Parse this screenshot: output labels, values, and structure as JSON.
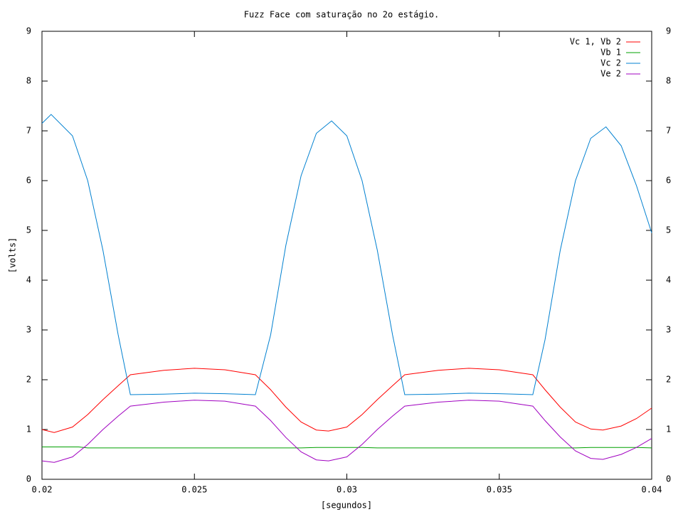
{
  "chart_data": {
    "type": "line",
    "title": "Fuzz Face com saturação no 2o estágio.",
    "xlabel": "[segundos]",
    "ylabel": "[volts]",
    "xlim": [
      0.02,
      0.04
    ],
    "xticks": [
      0.02,
      0.025,
      0.03,
      0.035,
      0.04
    ],
    "ylim": [
      0,
      9
    ],
    "yticks": [
      0,
      1,
      2,
      3,
      4,
      5,
      6,
      7,
      8,
      9
    ],
    "y2lim": [
      0,
      9
    ],
    "y2ticks": [
      0,
      1,
      2,
      3,
      4,
      5,
      6,
      7,
      8,
      9
    ],
    "grid": false,
    "legend": "top-right",
    "series": [
      {
        "name": "Vc 1, Vb 2",
        "color": "#ff0000",
        "x": [
          0.02,
          0.0204,
          0.021,
          0.0215,
          0.022,
          0.0225,
          0.0229,
          0.024,
          0.025,
          0.026,
          0.027,
          0.0275,
          0.028,
          0.0285,
          0.029,
          0.0294,
          0.03,
          0.0305,
          0.031,
          0.0315,
          0.0319,
          0.033,
          0.034,
          0.035,
          0.0361,
          0.0365,
          0.037,
          0.0375,
          0.038,
          0.0384,
          0.039,
          0.0395,
          0.04
        ],
        "values": [
          1.0,
          0.94,
          1.05,
          1.3,
          1.6,
          1.88,
          2.1,
          2.19,
          2.23,
          2.2,
          2.1,
          1.8,
          1.45,
          1.15,
          0.99,
          0.97,
          1.05,
          1.3,
          1.6,
          1.88,
          2.1,
          2.19,
          2.23,
          2.2,
          2.1,
          1.8,
          1.45,
          1.15,
          1.01,
          0.99,
          1.07,
          1.22,
          1.43
        ]
      },
      {
        "name": "Vb 1",
        "color": "#00a000",
        "x": [
          0.02,
          0.0212,
          0.0215,
          0.0285,
          0.029,
          0.0305,
          0.031,
          0.0375,
          0.038,
          0.0395,
          0.04
        ],
        "values": [
          0.65,
          0.65,
          0.63,
          0.63,
          0.64,
          0.64,
          0.63,
          0.63,
          0.64,
          0.64,
          0.63
        ]
      },
      {
        "name": "Vc 2",
        "color": "#0080d0",
        "x": [
          0.02,
          0.0203,
          0.021,
          0.0215,
          0.022,
          0.0225,
          0.0229,
          0.024,
          0.025,
          0.026,
          0.027,
          0.0275,
          0.028,
          0.0285,
          0.029,
          0.0295,
          0.03,
          0.0305,
          0.031,
          0.0315,
          0.0319,
          0.033,
          0.034,
          0.035,
          0.0361,
          0.0365,
          0.037,
          0.0375,
          0.038,
          0.0385,
          0.039,
          0.0395,
          0.04
        ],
        "values": [
          7.15,
          7.33,
          6.9,
          6.0,
          4.6,
          2.9,
          1.7,
          1.71,
          1.73,
          1.72,
          1.7,
          2.9,
          4.7,
          6.1,
          6.95,
          7.2,
          6.9,
          6.0,
          4.6,
          2.9,
          1.7,
          1.71,
          1.73,
          1.72,
          1.7,
          2.8,
          4.6,
          6.0,
          6.85,
          7.08,
          6.7,
          5.9,
          4.95
        ]
      },
      {
        "name": "Ve 2",
        "color": "#a000c0",
        "x": [
          0.02,
          0.0204,
          0.021,
          0.0215,
          0.022,
          0.0225,
          0.0229,
          0.024,
          0.025,
          0.026,
          0.027,
          0.0275,
          0.028,
          0.0285,
          0.029,
          0.0294,
          0.03,
          0.0305,
          0.031,
          0.0315,
          0.0319,
          0.033,
          0.034,
          0.035,
          0.0361,
          0.0365,
          0.037,
          0.0375,
          0.038,
          0.0384,
          0.039,
          0.0395,
          0.04
        ],
        "values": [
          0.37,
          0.34,
          0.45,
          0.7,
          1.0,
          1.27,
          1.47,
          1.55,
          1.59,
          1.57,
          1.47,
          1.18,
          0.84,
          0.55,
          0.39,
          0.37,
          0.45,
          0.7,
          1.0,
          1.27,
          1.47,
          1.55,
          1.59,
          1.57,
          1.47,
          1.18,
          0.85,
          0.57,
          0.42,
          0.4,
          0.5,
          0.64,
          0.82
        ]
      }
    ]
  }
}
